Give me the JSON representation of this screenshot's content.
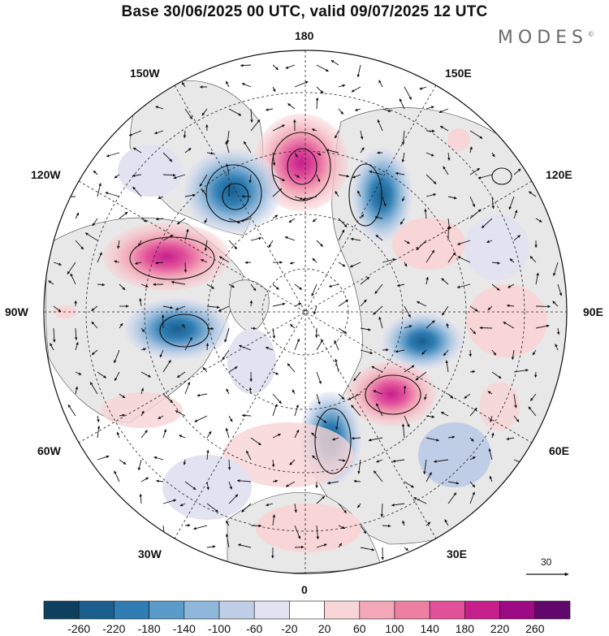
{
  "title": "Base 30/06/2025 00 UTC, valid 09/07/2025 12 UTC",
  "brand": "MODES",
  "brand_mark": "©",
  "longitude_labels": {
    "top": "180",
    "bottom": "0",
    "left": "90W",
    "right": "90E",
    "upper_left_outer": "150W",
    "upper_left_inner": "120W",
    "upper_right_outer": "150E",
    "upper_right_inner": "120E",
    "lower_left_outer": "60W",
    "lower_left_inner": "30W",
    "lower_right_outer": "60E",
    "lower_right_inner": "30E"
  },
  "reference_vector": {
    "label": "30"
  },
  "colorbar": {
    "ticks": [
      "-260",
      "-220",
      "-180",
      "-140",
      "-100",
      "-60",
      "-20",
      "20",
      "60",
      "100",
      "140",
      "180",
      "220",
      "260"
    ],
    "colors": [
      "#0f3f5e",
      "#1a5f8e",
      "#2f7db2",
      "#5a9bca",
      "#8fb7da",
      "#bfcde6",
      "#e2e2f1",
      "#ffffff",
      "#f8d5d6",
      "#f3a8b8",
      "#ec7fa2",
      "#e1519a",
      "#c61f8c",
      "#9c0a84",
      "#62076c"
    ]
  },
  "colors": {
    "land": "#e8e8e8",
    "positive_anomaly": "#e1519a",
    "negative_anomaly": "#2f7db2"
  },
  "icons": [
    "polar-map",
    "wind-arrow-icon",
    "reference-arrow-icon"
  ]
}
